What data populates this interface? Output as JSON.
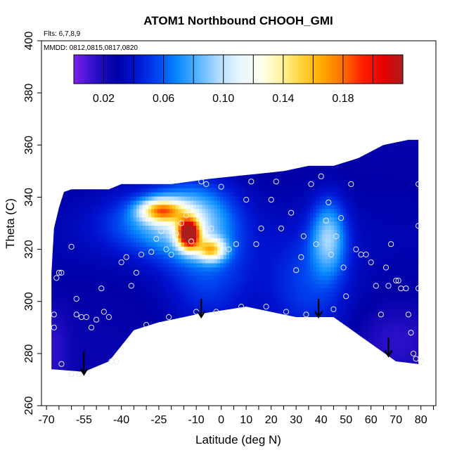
{
  "chart_data": {
    "type": "heatmap",
    "title": "ATOM1 Northbound CHOOH_GMI",
    "flights_note": "Flts: 6,7,8,9",
    "dates_note": "MMDD: 0812,0815,0817,0820",
    "xlabel": "Latitude (deg N)",
    "ylabel": "Theta (C)",
    "xlim": [
      -72,
      86
    ],
    "ylim": [
      260,
      400
    ],
    "x_ticks": [
      -70,
      -55,
      -40,
      -25,
      -10,
      0,
      10,
      20,
      30,
      40,
      50,
      60,
      70,
      80
    ],
    "x_tick_labels": [
      "-70",
      "-55",
      "-40",
      "-25",
      "-10",
      "0",
      "10",
      "20",
      "30",
      "40",
      "50",
      "60",
      "70",
      "80"
    ],
    "y_ticks": [
      260,
      280,
      300,
      320,
      340,
      360,
      380,
      400
    ],
    "y_tick_labels": [
      "260",
      "280",
      "300",
      "320",
      "340",
      "360",
      "380",
      "400"
    ],
    "colorbar": {
      "range": [
        0.0,
        0.22
      ],
      "tick_values": [
        0.02,
        0.06,
        0.1,
        0.14,
        0.18
      ],
      "tick_labels": [
        "0.02",
        "0.06",
        "0.10",
        "0.14",
        "0.18"
      ],
      "colors": [
        "#7a1fe8",
        "#2a10c8",
        "#0000a6",
        "#0014d2",
        "#0046f0",
        "#0a8cff",
        "#5ab4ff",
        "#b4deff",
        "#e8f6ff",
        "#fffff0",
        "#fff5a0",
        "#ffd23c",
        "#ffaa00",
        "#ff6e00",
        "#ff1e00",
        "#e60000",
        "#aa1e1e"
      ]
    },
    "field": {
      "top_boundary": [
        [
          -68,
          311
        ],
        [
          -67,
          328
        ],
        [
          -65,
          336
        ],
        [
          -63,
          342
        ],
        [
          -60,
          343
        ],
        [
          -45,
          343
        ],
        [
          -40,
          345
        ],
        [
          -20,
          345
        ],
        [
          -5,
          347
        ],
        [
          5,
          348
        ],
        [
          15,
          349
        ],
        [
          25,
          350
        ],
        [
          35,
          352
        ],
        [
          45,
          352
        ],
        [
          55,
          355
        ],
        [
          65,
          360
        ],
        [
          75,
          362
        ],
        [
          79,
          362
        ]
      ],
      "bottom_boundary": [
        [
          -68,
          274
        ],
        [
          -55,
          273
        ],
        [
          -45,
          277
        ],
        [
          -35,
          289
        ],
        [
          -25,
          292
        ],
        [
          -10,
          295
        ],
        [
          10,
          298
        ],
        [
          30,
          294
        ],
        [
          45,
          294
        ],
        [
          70,
          277
        ],
        [
          79,
          276
        ]
      ],
      "background_value": 0.025,
      "features": [
        {
          "x": -13,
          "y": 326,
          "sx": 3,
          "sy": 4,
          "amp": 0.17
        },
        {
          "x": -24,
          "y": 335,
          "sx": 6,
          "sy": 3,
          "amp": 0.1
        },
        {
          "x": -4,
          "y": 320,
          "sx": 4,
          "sy": 3,
          "amp": 0.09
        },
        {
          "x": -12,
          "y": 332,
          "sx": 12,
          "sy": 10,
          "amp": 0.055
        },
        {
          "x": -30,
          "y": 330,
          "sx": 14,
          "sy": 8,
          "amp": 0.03
        },
        {
          "x": -5,
          "y": 310,
          "sx": 12,
          "sy": 15,
          "amp": 0.025
        },
        {
          "x": 43,
          "y": 325,
          "sx": 5,
          "sy": 10,
          "amp": 0.055
        },
        {
          "x": 35,
          "y": 305,
          "sx": 12,
          "sy": 15,
          "amp": 0.025
        },
        {
          "x": -67,
          "y": 282,
          "sx": 4,
          "sy": 10,
          "amp": -0.012
        },
        {
          "x": 70,
          "y": 285,
          "sx": 10,
          "sy": 8,
          "amp": -0.012
        }
      ]
    },
    "observations": [
      [
        -66,
        309
      ],
      [
        -65,
        311
      ],
      [
        -64,
        311
      ],
      [
        -67,
        295
      ],
      [
        -67,
        290
      ],
      [
        -60,
        321
      ],
      [
        -58,
        301
      ],
      [
        -58,
        295
      ],
      [
        -56,
        294
      ],
      [
        -54,
        294
      ],
      [
        -52,
        290
      ],
      [
        -50,
        293
      ],
      [
        -48,
        305
      ],
      [
        -47,
        296
      ],
      [
        -45,
        294
      ],
      [
        -44,
        277
      ],
      [
        -42,
        277
      ],
      [
        -40,
        315
      ],
      [
        -38,
        317
      ],
      [
        -36,
        306
      ],
      [
        -34,
        311
      ],
      [
        -32,
        318
      ],
      [
        -30,
        291
      ],
      [
        -28,
        319
      ],
      [
        -26,
        324
      ],
      [
        -24,
        327
      ],
      [
        -22,
        320
      ],
      [
        -21,
        294
      ],
      [
        -20,
        318
      ],
      [
        -18,
        326
      ],
      [
        -16,
        330
      ],
      [
        -14,
        333
      ],
      [
        -12,
        323
      ],
      [
        -10,
        296
      ],
      [
        -8,
        346
      ],
      [
        -6,
        345
      ],
      [
        -4,
        328
      ],
      [
        -2,
        296
      ],
      [
        0,
        344
      ],
      [
        3,
        320
      ],
      [
        6,
        322
      ],
      [
        8,
        298
      ],
      [
        10,
        339
      ],
      [
        12,
        346
      ],
      [
        14,
        322
      ],
      [
        16,
        328
      ],
      [
        18,
        298
      ],
      [
        20,
        339
      ],
      [
        22,
        346
      ],
      [
        24,
        328
      ],
      [
        26,
        296
      ],
      [
        28,
        334
      ],
      [
        30,
        312
      ],
      [
        32,
        317
      ],
      [
        33,
        325
      ],
      [
        34,
        295
      ],
      [
        36,
        345
      ],
      [
        38,
        322
      ],
      [
        40,
        348
      ],
      [
        42,
        331
      ],
      [
        43,
        338
      ],
      [
        44,
        318
      ],
      [
        45,
        297
      ],
      [
        46,
        325
      ],
      [
        48,
        332
      ],
      [
        49,
        313
      ],
      [
        50,
        302
      ],
      [
        52,
        345
      ],
      [
        54,
        320
      ],
      [
        56,
        318
      ],
      [
        58,
        318
      ],
      [
        60,
        315
      ],
      [
        62,
        306
      ],
      [
        64,
        295
      ],
      [
        66,
        313
      ],
      [
        67,
        306
      ],
      [
        68,
        322
      ],
      [
        70,
        308
      ],
      [
        71,
        308
      ],
      [
        72,
        305
      ],
      [
        74,
        305
      ],
      [
        75,
        295
      ],
      [
        76,
        288
      ],
      [
        77,
        280
      ],
      [
        78,
        278
      ],
      [
        79,
        305
      ],
      [
        80,
        277
      ],
      [
        79,
        329
      ],
      [
        79,
        345
      ],
      [
        -64,
        276
      ],
      [
        -60,
        272
      ],
      [
        -57,
        272
      ]
    ],
    "arrows": [
      {
        "x": -55,
        "y_from": 281,
        "y_to": 272
      },
      {
        "x": -8,
        "y_from": 301,
        "y_to": 294
      },
      {
        "x": 39,
        "y_from": 301,
        "y_to": 294
      },
      {
        "x": 67,
        "y_from": 286,
        "y_to": 279
      }
    ]
  }
}
